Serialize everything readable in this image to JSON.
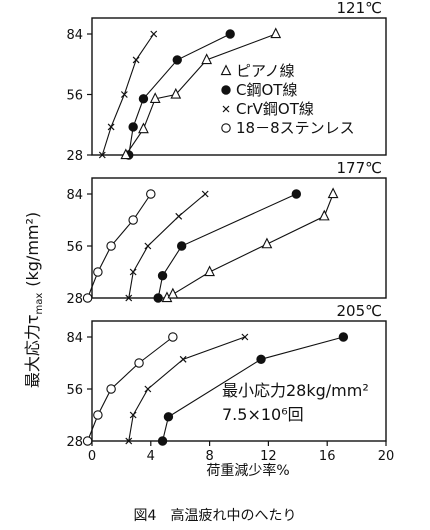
{
  "chart_data": {
    "type": "line",
    "x_range": [
      0,
      20
    ],
    "y_range": [
      28,
      84
    ],
    "x_ticks": [
      "0",
      "4",
      "8",
      "12",
      "16",
      "20"
    ],
    "y_ticks": [
      "28",
      "56",
      "84"
    ],
    "xlabel": "荷重減少率%",
    "ylabel": "最大応力τ",
    "ylabel_sub": "max",
    "ylabel_unit": "(kg/mm²)",
    "caption": "図4　高温疲れ中のへたり",
    "legend": [
      {
        "marker": "triangle",
        "label": "ピアノ線"
      },
      {
        "marker": "filled-circle",
        "label": "C鋼OT線"
      },
      {
        "marker": "cross",
        "label": "CrV鋼OT線"
      },
      {
        "marker": "open-circle",
        "label": "18－8ステンレス"
      }
    ],
    "panels": [
      {
        "temperature": "121℃",
        "series": [
          {
            "marker": "cross",
            "points": [
              [
                0.7,
                28
              ],
              [
                1.3,
                41
              ],
              [
                2.2,
                56
              ],
              [
                3.0,
                72
              ],
              [
                4.2,
                84
              ]
            ]
          },
          {
            "marker": "filled-circle",
            "points": [
              [
                2.5,
                28
              ],
              [
                2.8,
                41
              ],
              [
                3.5,
                54
              ],
              [
                5.8,
                72
              ],
              [
                9.4,
                84
              ]
            ]
          },
          {
            "marker": "triangle",
            "points": [
              [
                2.3,
                28
              ],
              [
                3.5,
                40
              ],
              [
                4.3,
                54
              ],
              [
                5.7,
                56
              ],
              [
                7.8,
                72
              ],
              [
                12.5,
                84
              ]
            ]
          }
        ]
      },
      {
        "temperature": "177℃",
        "series": [
          {
            "marker": "open-circle",
            "points": [
              [
                -0.3,
                28
              ],
              [
                0.4,
                42
              ],
              [
                1.3,
                56
              ],
              [
                2.8,
                70
              ],
              [
                4.0,
                84
              ]
            ]
          },
          {
            "marker": "cross",
            "points": [
              [
                2.5,
                28
              ],
              [
                2.8,
                42
              ],
              [
                3.8,
                56
              ],
              [
                5.9,
                72
              ],
              [
                7.7,
                84
              ]
            ]
          },
          {
            "marker": "filled-circle",
            "points": [
              [
                4.5,
                28
              ],
              [
                4.8,
                40
              ],
              [
                6.1,
                56
              ],
              [
                13.9,
                84
              ]
            ]
          },
          {
            "marker": "triangle",
            "points": [
              [
                5.1,
                28
              ],
              [
                5.5,
                30
              ],
              [
                8.0,
                42
              ],
              [
                11.9,
                57
              ],
              [
                15.8,
                72
              ],
              [
                16.4,
                84
              ]
            ]
          }
        ]
      },
      {
        "temperature": "205℃",
        "series": [
          {
            "marker": "open-circle",
            "points": [
              [
                -0.3,
                28
              ],
              [
                0.4,
                42
              ],
              [
                1.3,
                56
              ],
              [
                3.2,
                70
              ],
              [
                5.5,
                84
              ]
            ]
          },
          {
            "marker": "cross",
            "points": [
              [
                2.5,
                28
              ],
              [
                2.8,
                42
              ],
              [
                3.8,
                56
              ],
              [
                6.2,
                72
              ],
              [
                10.4,
                84
              ]
            ]
          },
          {
            "marker": "filled-circle",
            "points": [
              [
                4.8,
                28
              ],
              [
                5.2,
                41
              ],
              [
                11.5,
                72
              ],
              [
                17.1,
                84
              ]
            ]
          }
        ]
      }
    ],
    "annotation": [
      "最小応力28kg/mm²",
      "7.5×10⁶回"
    ]
  }
}
